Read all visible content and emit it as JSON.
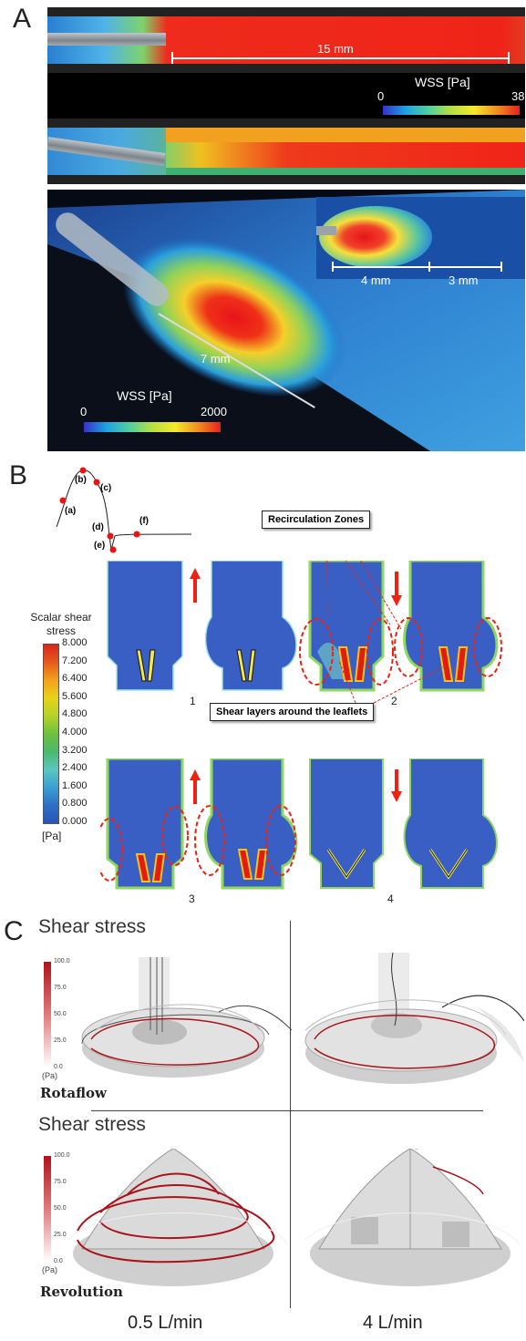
{
  "panels": {
    "A": {
      "label": "A",
      "top_scale_text": "15 mm",
      "top_colorbar": {
        "title": "WSS [Pa]",
        "min": "0",
        "max": "38"
      },
      "bottom_colorbar": {
        "title": "WSS [Pa]",
        "min": "0",
        "max": "2000"
      },
      "inset_scales": [
        "4 mm",
        "3 mm"
      ],
      "diag_scale": "7 mm"
    },
    "B": {
      "label": "B",
      "waveform_points": [
        "(a)",
        "(b)",
        "(c)",
        "(d)",
        "(e)",
        "(f)"
      ],
      "colorbar_title": "Scalar shear stress",
      "colorbar_ticks": [
        "8.000",
        "7.200",
        "6.400",
        "5.600",
        "4.800",
        "4.000",
        "3.200",
        "2.400",
        "1.600",
        "0.800",
        "0.000"
      ],
      "colorbar_unit": "[Pa]",
      "callout_recirc": "Recirculation Zones",
      "callout_shear": "Shear layers around the leaflets",
      "frame_labels": [
        "1",
        "2",
        "3",
        "4"
      ]
    },
    "C": {
      "label": "C",
      "row_title": "Shear stress",
      "colorbar_ticks": [
        "100.0",
        "75.0",
        "50.0",
        "25.0",
        "0.0"
      ],
      "colorbar_unit": "(Pa)",
      "pump_top": "Rotaflow",
      "pump_bottom": "Revolution",
      "flow_left": "0.5 L/min",
      "flow_right": "4 L/min"
    }
  }
}
